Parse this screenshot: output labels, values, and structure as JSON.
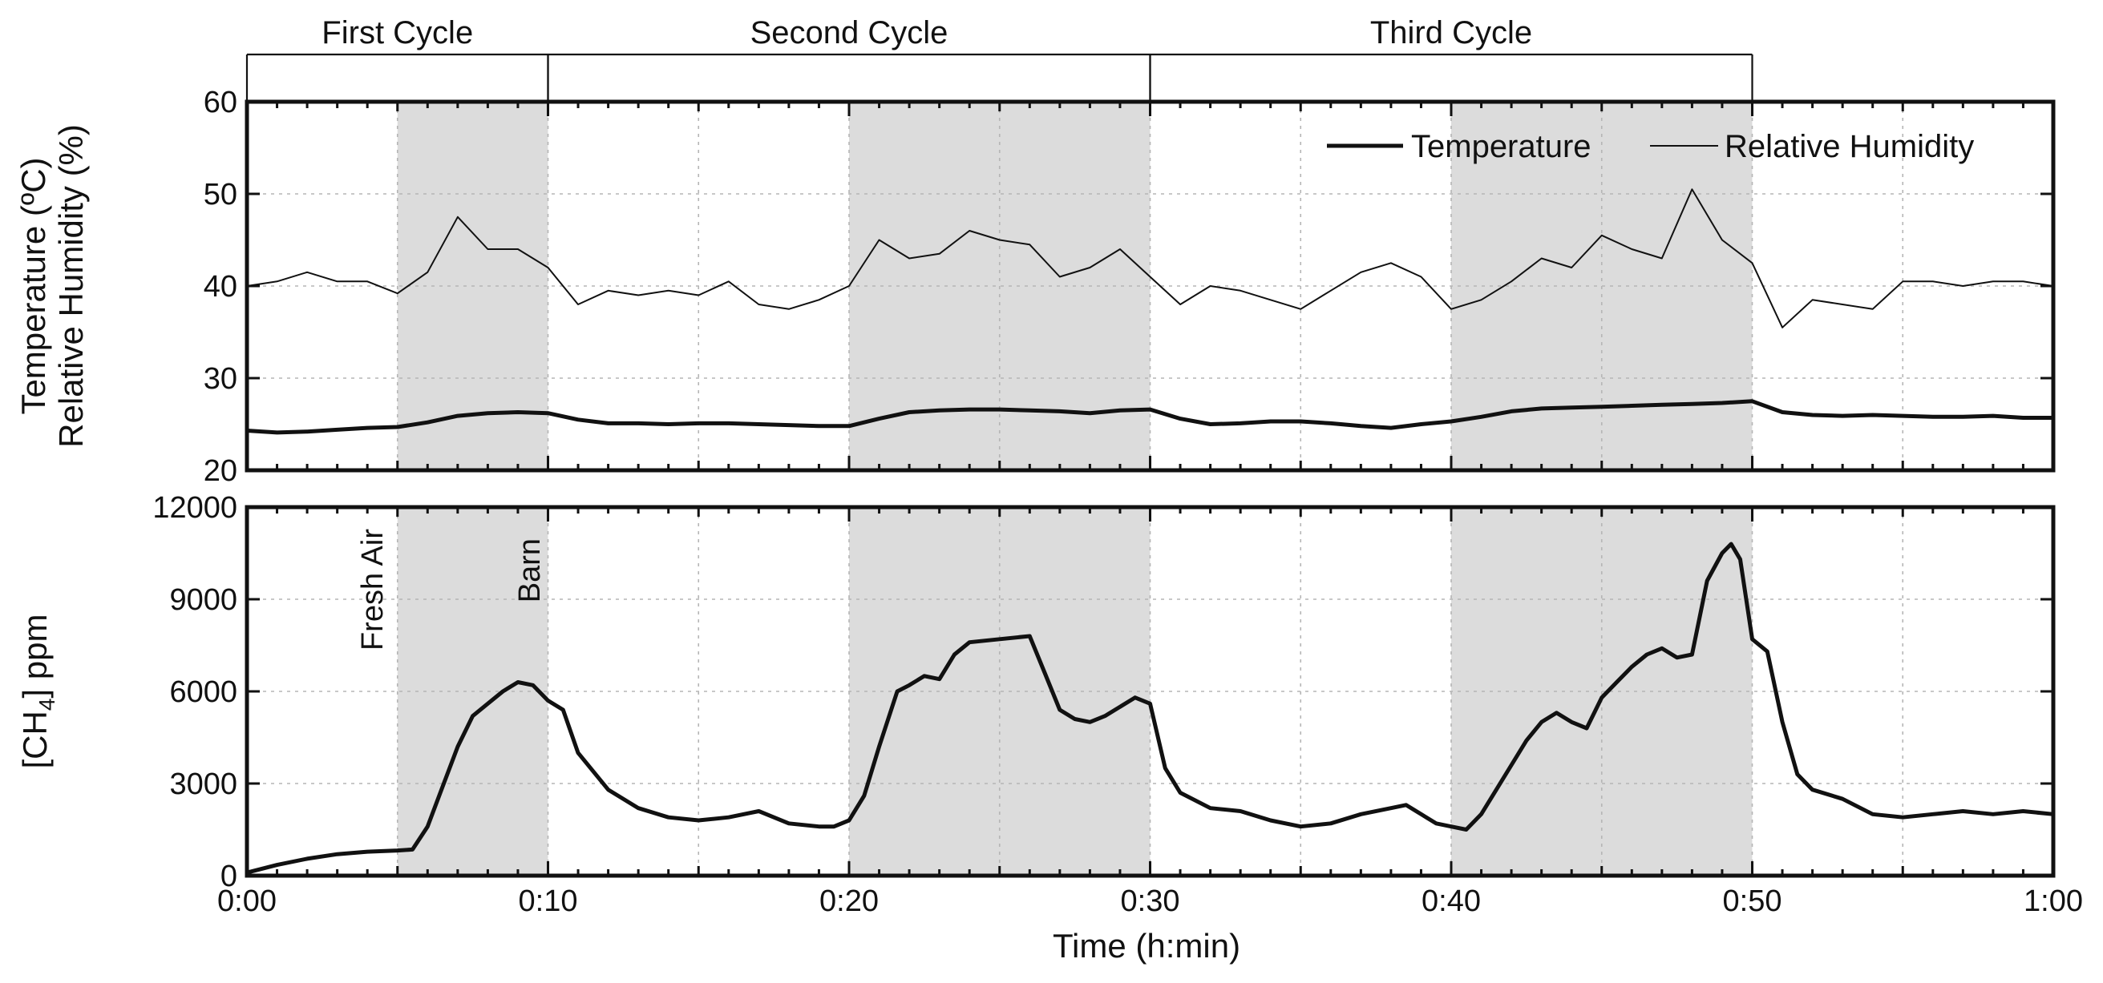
{
  "chart_data": [
    {
      "type": "line",
      "panel": "top",
      "ylabel_line1": "Temperature (ºC)",
      "ylabel_line2": "Relative Humidity (%)",
      "xlim": [
        0,
        60
      ],
      "ylim": [
        20,
        60
      ],
      "yticks": [
        20,
        30,
        40,
        50,
        60
      ],
      "ytick_labels": [
        "20",
        "30",
        "40",
        "50",
        "60"
      ],
      "grid": true,
      "legend_position": "top-right",
      "series": [
        {
          "name": "Temperature",
          "style": "thick",
          "x": [
            0,
            1,
            2,
            3,
            4,
            5,
            6,
            7,
            8,
            9,
            10,
            11,
            12,
            13,
            14,
            15,
            16,
            17,
            18,
            19,
            20,
            21,
            22,
            23,
            24,
            25,
            26,
            27,
            28,
            29,
            30,
            31,
            32,
            33,
            34,
            35,
            36,
            37,
            38,
            39,
            40,
            41,
            42,
            43,
            44,
            45,
            46,
            47,
            48,
            49,
            50,
            51,
            52,
            53,
            54,
            55,
            56,
            57,
            58,
            59,
            60
          ],
          "values": [
            24.3,
            24.1,
            24.2,
            24.4,
            24.6,
            24.7,
            25.2,
            25.9,
            26.2,
            26.3,
            26.2,
            25.5,
            25.1,
            25.1,
            25.0,
            25.1,
            25.1,
            25.0,
            24.9,
            24.8,
            24.8,
            25.6,
            26.3,
            26.5,
            26.6,
            26.6,
            26.5,
            26.4,
            26.2,
            26.5,
            26.6,
            25.6,
            25.0,
            25.1,
            25.3,
            25.3,
            25.1,
            24.8,
            24.6,
            25.0,
            25.3,
            25.8,
            26.4,
            26.7,
            26.8,
            26.9,
            27.0,
            27.1,
            27.2,
            27.3,
            27.5,
            26.3,
            26.0,
            25.9,
            26.0,
            25.9,
            25.8,
            25.8,
            25.9,
            25.7,
            25.7
          ]
        },
        {
          "name": "Relative Humidity",
          "style": "thin",
          "x": [
            0,
            1,
            2,
            3,
            4,
            5,
            6,
            7,
            8,
            9,
            10,
            11,
            12,
            13,
            14,
            15,
            16,
            17,
            18,
            19,
            20,
            21,
            22,
            23,
            24,
            25,
            26,
            27,
            28,
            29,
            30,
            31,
            32,
            33,
            34,
            35,
            36,
            37,
            38,
            39,
            40,
            41,
            42,
            43,
            44,
            45,
            46,
            47,
            48,
            49,
            50,
            51,
            52,
            53,
            54,
            55,
            56,
            57,
            58,
            59,
            60
          ],
          "values": [
            40.0,
            40.5,
            41.5,
            40.5,
            40.5,
            39.2,
            41.5,
            47.5,
            44.0,
            44.0,
            42.0,
            38.0,
            39.5,
            39.0,
            39.5,
            39.0,
            40.5,
            38.0,
            37.5,
            38.5,
            40.0,
            45.0,
            43.0,
            43.5,
            46.0,
            45.0,
            44.5,
            41.0,
            42.0,
            44.0,
            41.0,
            38.0,
            40.0,
            39.5,
            38.5,
            37.5,
            39.5,
            41.5,
            42.5,
            41.0,
            37.5,
            38.5,
            40.5,
            43.0,
            42.0,
            45.5,
            44.0,
            43.0,
            50.5,
            45.0,
            42.5,
            35.5,
            38.5,
            38.0,
            37.5,
            40.5,
            40.5,
            40.0,
            40.5,
            40.5,
            40.0
          ]
        }
      ]
    },
    {
      "type": "line",
      "panel": "bottom",
      "ylabel_main": "[CH",
      "ylabel_sub": "4",
      "ylabel_tail": "] ppm",
      "xlabel": "Time (h:min)",
      "xlim": [
        0,
        60
      ],
      "ylim": [
        0,
        12000
      ],
      "yticks": [
        0,
        3000,
        6000,
        9000,
        12000
      ],
      "ytick_labels": [
        "0",
        "3000",
        "6000",
        "9000",
        "12000"
      ],
      "xticks": [
        0,
        10,
        20,
        30,
        40,
        50,
        60
      ],
      "xtick_labels": [
        "0:00",
        "0:10",
        "0:20",
        "0:30",
        "0:40",
        "0:50",
        "1:00"
      ],
      "grid": true,
      "series": [
        {
          "name": "[CH4]",
          "style": "thick",
          "x": [
            0,
            1,
            2,
            3,
            4,
            5,
            5.5,
            6,
            6.5,
            7,
            7.5,
            8,
            8.5,
            9,
            9.5,
            10,
            10.5,
            11,
            12,
            13,
            14,
            15,
            16,
            17,
            18,
            19,
            19.5,
            20,
            20.5,
            21,
            21.3,
            21.6,
            22,
            22.5,
            23,
            23.5,
            24,
            25,
            26,
            26.5,
            27,
            27.5,
            28,
            28.5,
            29,
            29.5,
            30,
            30.5,
            31,
            32,
            33,
            34,
            35,
            36,
            37,
            38,
            38.5,
            39,
            39.5,
            40,
            40.5,
            41,
            41.5,
            42,
            42.5,
            43,
            43.5,
            44,
            44.5,
            45,
            45.5,
            46,
            46.5,
            47,
            47.5,
            48,
            48.5,
            49,
            49.3,
            49.6,
            50,
            50.5,
            51,
            51.5,
            52,
            53,
            54,
            55,
            56,
            57,
            58,
            59,
            60
          ],
          "values": [
            100,
            350,
            550,
            700,
            780,
            820,
            850,
            1600,
            2900,
            4200,
            5200,
            5600,
            6000,
            6300,
            6200,
            5700,
            5400,
            4000,
            2800,
            2200,
            1900,
            1800,
            1900,
            2100,
            1700,
            1600,
            1600,
            1800,
            2600,
            4200,
            5100,
            6000,
            6200,
            6500,
            6400,
            7200,
            7600,
            7700,
            7800,
            6600,
            5400,
            5100,
            5000,
            5200,
            5500,
            5800,
            5600,
            3500,
            2700,
            2200,
            2100,
            1800,
            1600,
            1700,
            2000,
            2200,
            2300,
            2000,
            1700,
            1600,
            1500,
            2000,
            2800,
            3600,
            4400,
            5000,
            5300,
            5000,
            4800,
            5800,
            6300,
            6800,
            7200,
            7400,
            7100,
            7200,
            9600,
            10500,
            10800,
            10300,
            7700,
            7300,
            5000,
            3300,
            2800,
            2500,
            2000,
            1900,
            2000,
            2100,
            2000,
            2100,
            2000
          ]
        }
      ],
      "annotations": [
        {
          "text": "Fresh Air",
          "x": 5
        },
        {
          "text": "Barn",
          "x": 10
        }
      ]
    }
  ],
  "shaded_intervals_min": [
    [
      5,
      10
    ],
    [
      20,
      30
    ],
    [
      40,
      50
    ]
  ],
  "cycles": [
    {
      "label": "First Cycle",
      "start": 0,
      "end": 10
    },
    {
      "label": "Second Cycle",
      "start": 10,
      "end": 30
    },
    {
      "label": "Third Cycle",
      "start": 30,
      "end": 50
    }
  ],
  "colors": {
    "line": "#111111",
    "shade": "#dcdcdc",
    "grid": "#b5b5b5"
  }
}
